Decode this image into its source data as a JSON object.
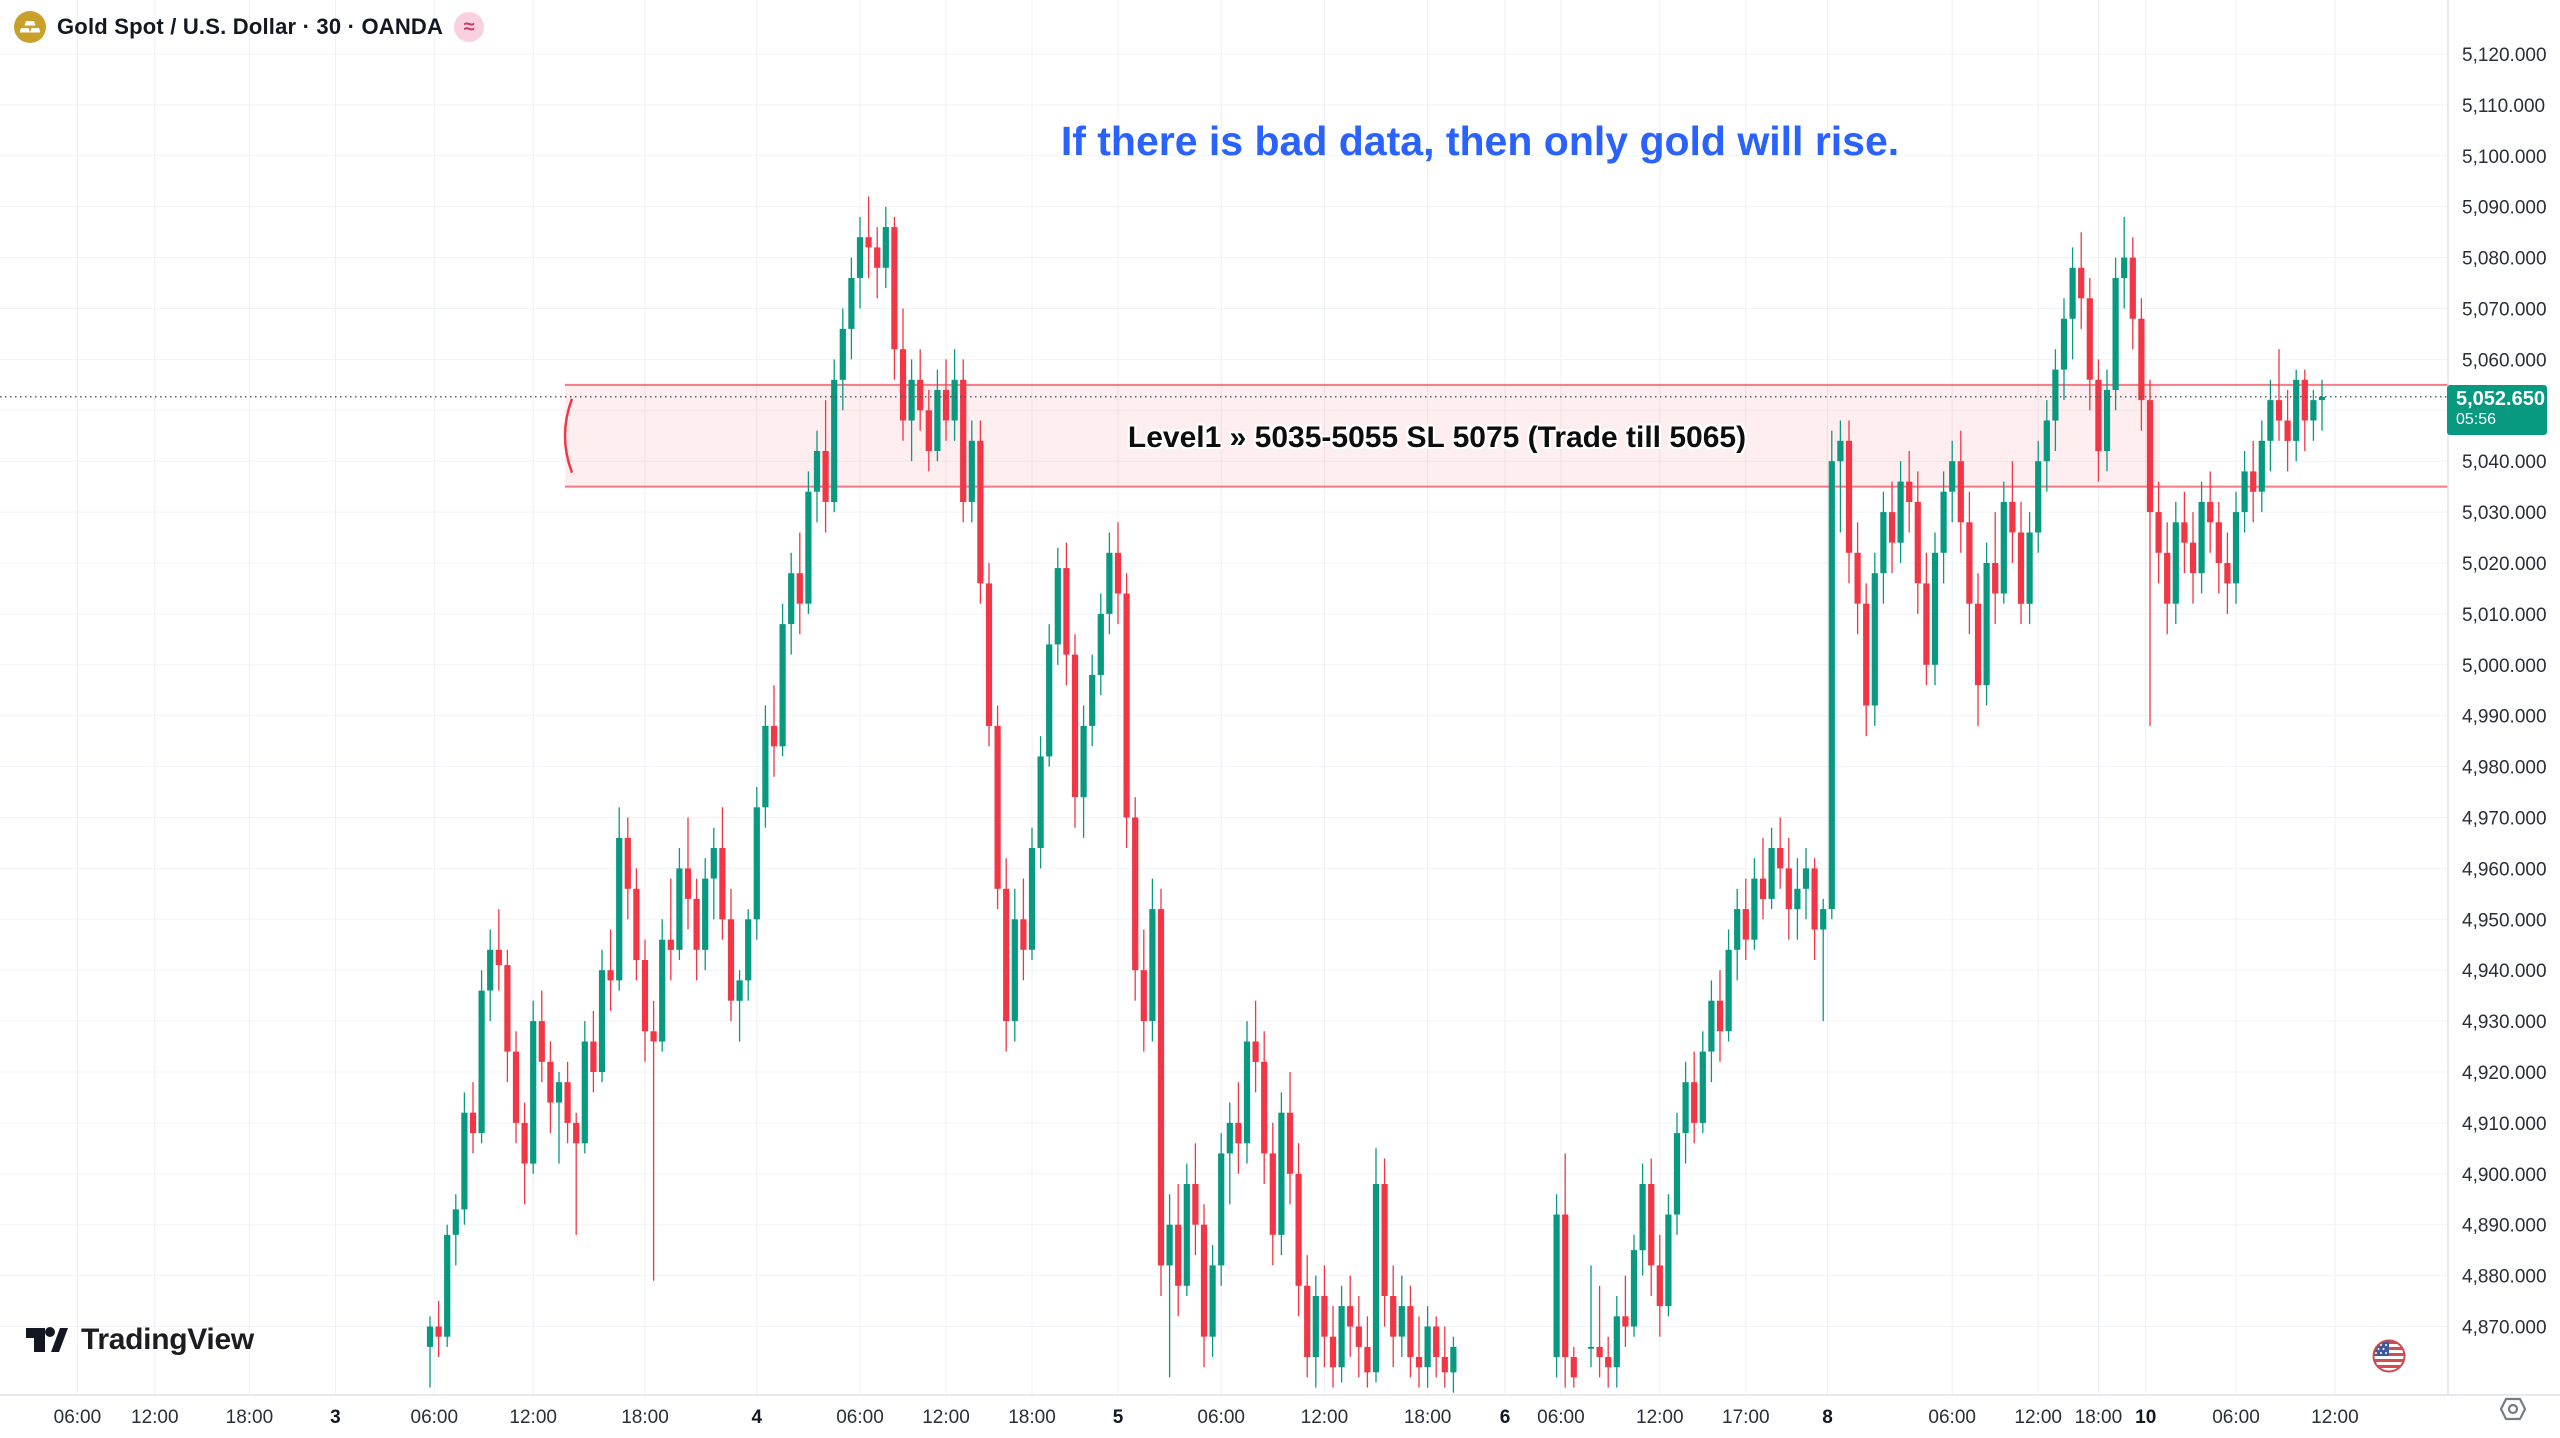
{
  "header": {
    "symbol_title": "Gold Spot / U.S. Dollar · 30 · OANDA",
    "delayed_badge": "≈",
    "gold_icon": "gold-bars-icon"
  },
  "annotation": {
    "text": "If there is bad data, then only gold will rise.",
    "color": "#2962ff"
  },
  "zone": {
    "label": "Level1 » 5035-5055 SL 5075 (Trade till 5065)",
    "price_top": 5055,
    "price_bottom": 5035,
    "color": "#f23645"
  },
  "last_price": {
    "value": "5,052.650",
    "countdown": "05:56",
    "price": 5052.65,
    "color": "#089981"
  },
  "logo": {
    "text": "TradingView"
  },
  "price_axis": {
    "ticks": [
      {
        "price": 5120,
        "label": "5,120.000"
      },
      {
        "price": 5110,
        "label": "5,110.000"
      },
      {
        "price": 5100,
        "label": "5,100.000"
      },
      {
        "price": 5090,
        "label": "5,090.000"
      },
      {
        "price": 5080,
        "label": "5,080.000"
      },
      {
        "price": 5070,
        "label": "5,070.000"
      },
      {
        "price": 5060,
        "label": "5,060.000"
      },
      {
        "price": 5050,
        "label": "5,050.000"
      },
      {
        "price": 5040,
        "label": "5,040.000"
      },
      {
        "price": 5030,
        "label": "5,030.000"
      },
      {
        "price": 5020,
        "label": "5,020.000"
      },
      {
        "price": 5010,
        "label": "5,010.000"
      },
      {
        "price": 5000,
        "label": "5,000.000"
      },
      {
        "price": 4990,
        "label": "4,990.000"
      },
      {
        "price": 4980,
        "label": "4,980.000"
      },
      {
        "price": 4970,
        "label": "4,970.000"
      },
      {
        "price": 4960,
        "label": "4,960.000"
      },
      {
        "price": 4950,
        "label": "4,950.000"
      },
      {
        "price": 4940,
        "label": "4,940.000"
      },
      {
        "price": 4930,
        "label": "4,930.000"
      },
      {
        "price": 4920,
        "label": "4,920.000"
      },
      {
        "price": 4910,
        "label": "4,910.000"
      },
      {
        "price": 4900,
        "label": "4,900.000"
      },
      {
        "price": 4890,
        "label": "4,890.000"
      },
      {
        "price": 4880,
        "label": "4,880.000"
      },
      {
        "price": 4870,
        "label": "4,870.000"
      }
    ],
    "hide_label_price": 5050
  },
  "time_axis": {
    "ticks": [
      {
        "label": "06:00",
        "slot": -41
      },
      {
        "label": "12:00",
        "slot": -32
      },
      {
        "label": "18:00",
        "slot": -21
      },
      {
        "label": "3",
        "slot": -11,
        "bold": true
      },
      {
        "label": "06:00",
        "slot": 0.5
      },
      {
        "label": "12:00",
        "slot": 12
      },
      {
        "label": "18:00",
        "slot": 25
      },
      {
        "label": "4",
        "slot": 38,
        "bold": true
      },
      {
        "label": "06:00",
        "slot": 50
      },
      {
        "label": "12:00",
        "slot": 60
      },
      {
        "label": "18:00",
        "slot": 70
      },
      {
        "label": "5",
        "slot": 80,
        "bold": true
      },
      {
        "label": "06:00",
        "slot": 92
      },
      {
        "label": "12:00",
        "slot": 104
      },
      {
        "label": "18:00",
        "slot": 116
      },
      {
        "label": "6",
        "slot": 125,
        "bold": true
      },
      {
        "label": "06:00",
        "slot": 131.5
      },
      {
        "label": "12:00",
        "slot": 143
      },
      {
        "label": "17:00",
        "slot": 153
      },
      {
        "label": "8",
        "slot": 162.5,
        "bold": true
      },
      {
        "label": "06:00",
        "slot": 177
      },
      {
        "label": "12:00",
        "slot": 187
      },
      {
        "label": "18:00",
        "slot": 194
      },
      {
        "label": "10",
        "slot": 199.5,
        "bold": true
      },
      {
        "label": "06:00",
        "slot": 210
      },
      {
        "label": "12:00",
        "slot": 221.5
      }
    ]
  },
  "chart_data": {
    "type": "candlestick",
    "title": "Gold Spot / U.S. Dollar",
    "exchange": "OANDA",
    "interval_minutes": 30,
    "up_color": "#089981",
    "down_color": "#f23645",
    "ylim": [
      4858,
      5122
    ],
    "grid": true,
    "candles": [
      [
        4866,
        4872,
        4858,
        4870
      ],
      [
        4870,
        4875,
        4864,
        4868
      ],
      [
        4868,
        4890,
        4866,
        4888
      ],
      [
        4888,
        4896,
        4882,
        4893
      ],
      [
        4893,
        4916,
        4890,
        4912
      ],
      [
        4912,
        4918,
        4904,
        4908
      ],
      [
        4908,
        4940,
        4906,
        4936
      ],
      [
        4936,
        4948,
        4930,
        4944
      ],
      [
        4944,
        4952,
        4936,
        4941
      ],
      [
        4941,
        4944,
        4918,
        4924
      ],
      [
        4924,
        4928,
        4906,
        4910
      ],
      [
        4910,
        4914,
        4894,
        4902
      ],
      [
        4902,
        4934,
        4900,
        4930
      ],
      [
        4930,
        4936,
        4918,
        4922
      ],
      [
        4922,
        4926,
        4908,
        4914
      ],
      [
        4914,
        4920,
        4902,
        4918
      ],
      [
        4918,
        4922,
        4906,
        4910
      ],
      [
        4910,
        4912,
        4888,
        4906
      ],
      [
        4906,
        4930,
        4904,
        4926
      ],
      [
        4926,
        4932,
        4916,
        4920
      ],
      [
        4920,
        4944,
        4918,
        4940
      ],
      [
        4940,
        4948,
        4932,
        4938
      ],
      [
        4938,
        4972,
        4936,
        4966
      ],
      [
        4966,
        4970,
        4950,
        4956
      ],
      [
        4956,
        4960,
        4938,
        4942
      ],
      [
        4942,
        4946,
        4922,
        4928
      ],
      [
        4928,
        4934,
        4879,
        4926
      ],
      [
        4926,
        4950,
        4924,
        4946
      ],
      [
        4946,
        4958,
        4938,
        4944
      ],
      [
        4944,
        4964,
        4942,
        4960
      ],
      [
        4960,
        4970,
        4948,
        4954
      ],
      [
        4954,
        4958,
        4938,
        4944
      ],
      [
        4944,
        4962,
        4940,
        4958
      ],
      [
        4958,
        4968,
        4950,
        4964
      ],
      [
        4964,
        4972,
        4946,
        4950
      ],
      [
        4950,
        4956,
        4930,
        4934
      ],
      [
        4934,
        4940,
        4926,
        4938
      ],
      [
        4938,
        4952,
        4934,
        4950
      ],
      [
        4950,
        4976,
        4946,
        4972
      ],
      [
        4972,
        4992,
        4968,
        4988
      ],
      [
        4988,
        4996,
        4978,
        4984
      ],
      [
        4984,
        5012,
        4982,
        5008
      ],
      [
        5008,
        5022,
        5002,
        5018
      ],
      [
        5018,
        5026,
        5006,
        5012
      ],
      [
        5012,
        5038,
        5010,
        5034
      ],
      [
        5034,
        5046,
        5028,
        5042
      ],
      [
        5042,
        5052,
        5026,
        5032
      ],
      [
        5032,
        5060,
        5030,
        5056
      ],
      [
        5056,
        5070,
        5050,
        5066
      ],
      [
        5066,
        5080,
        5060,
        5076
      ],
      [
        5076,
        5088,
        5070,
        5084
      ],
      [
        5084,
        5092,
        5076,
        5082
      ],
      [
        5082,
        5086,
        5072,
        5078
      ],
      [
        5078,
        5090,
        5074,
        5086
      ],
      [
        5086,
        5088,
        5056,
        5062
      ],
      [
        5062,
        5070,
        5044,
        5048
      ],
      [
        5048,
        5060,
        5040,
        5056
      ],
      [
        5056,
        5062,
        5046,
        5050
      ],
      [
        5050,
        5054,
        5038,
        5042
      ],
      [
        5042,
        5058,
        5040,
        5054
      ],
      [
        5054,
        5060,
        5044,
        5048
      ],
      [
        5048,
        5062,
        5044,
        5056
      ],
      [
        5056,
        5060,
        5028,
        5032
      ],
      [
        5032,
        5048,
        5028,
        5044
      ],
      [
        5044,
        5048,
        5012,
        5016
      ],
      [
        5016,
        5020,
        4984,
        4988
      ],
      [
        4988,
        4992,
        4952,
        4956
      ],
      [
        4956,
        4962,
        4924,
        4930
      ],
      [
        4930,
        4956,
        4926,
        4950
      ],
      [
        4950,
        4958,
        4938,
        4944
      ],
      [
        4944,
        4968,
        4942,
        4964
      ],
      [
        4964,
        4986,
        4960,
        4982
      ],
      [
        4982,
        5008,
        4980,
        5004
      ],
      [
        5004,
        5023,
        5000,
        5019
      ],
      [
        5019,
        5024,
        4996,
        5002
      ],
      [
        5002,
        5006,
        4968,
        4974
      ],
      [
        4974,
        4992,
        4966,
        4988
      ],
      [
        4988,
        5002,
        4984,
        4998
      ],
      [
        4998,
        5014,
        4994,
        5010
      ],
      [
        5010,
        5026,
        5006,
        5022
      ],
      [
        5022,
        5028,
        5008,
        5014
      ],
      [
        5014,
        5018,
        4964,
        4970
      ],
      [
        4970,
        4974,
        4934,
        4940
      ],
      [
        4940,
        4948,
        4924,
        4930
      ],
      [
        4930,
        4958,
        4926,
        4952
      ],
      [
        4952,
        4956,
        4876,
        4882
      ],
      [
        4882,
        4896,
        4860,
        4890
      ],
      [
        4890,
        4898,
        4872,
        4878
      ],
      [
        4878,
        4902,
        4876,
        4898
      ],
      [
        4898,
        4906,
        4884,
        4890
      ],
      [
        4890,
        4894,
        4862,
        4868
      ],
      [
        4868,
        4886,
        4864,
        4882
      ],
      [
        4882,
        4908,
        4878,
        4904
      ],
      [
        4904,
        4914,
        4894,
        4910
      ],
      [
        4910,
        4918,
        4900,
        4906
      ],
      [
        4906,
        4930,
        4902,
        4926
      ],
      [
        4926,
        4934,
        4916,
        4922
      ],
      [
        4922,
        4928,
        4898,
        4904
      ],
      [
        4904,
        4910,
        4882,
        4888
      ],
      [
        4888,
        4916,
        4884,
        4912
      ],
      [
        4912,
        4920,
        4894,
        4900
      ],
      [
        4900,
        4906,
        4872,
        4878
      ],
      [
        4878,
        4884,
        4860,
        4864
      ],
      [
        4864,
        4880,
        4858,
        4876
      ],
      [
        4876,
        4882,
        4862,
        4868
      ],
      [
        4868,
        4874,
        4858,
        4862
      ],
      [
        4862,
        4878,
        4859,
        4874
      ],
      [
        4874,
        4880,
        4864,
        4870
      ],
      [
        4870,
        4876,
        4860,
        4866
      ],
      [
        4866,
        4872,
        4858,
        4861
      ],
      [
        4861,
        4905,
        4859,
        4898
      ],
      [
        4898,
        4903,
        4870,
        4876
      ],
      [
        4876,
        4882,
        4862,
        4868
      ],
      [
        4868,
        4880,
        4864,
        4874
      ],
      [
        4874,
        4878,
        4860,
        4864
      ],
      [
        4864,
        4872,
        4858,
        4862
      ],
      [
        4862,
        4874,
        4858,
        4870
      ],
      [
        4870,
        4872,
        4860,
        4864
      ],
      [
        4864,
        4870,
        4858,
        4861
      ],
      [
        4861,
        4868,
        4857,
        4866
      ],
      null,
      null,
      null,
      null,
      null,
      null,
      null,
      null,
      null,
      null,
      null,
      [
        4864,
        4896,
        4860,
        4892
      ],
      [
        4892,
        4904,
        4858,
        4864
      ],
      [
        4864,
        4866,
        4858,
        4860
      ],
      null,
      [
        4866,
        4882,
        4862,
        4866
      ],
      [
        4866,
        4878,
        4860,
        4864
      ],
      [
        4864,
        4868,
        4858,
        4862
      ],
      [
        4862,
        4876,
        4858,
        4872
      ],
      [
        4872,
        4880,
        4866,
        4870
      ],
      [
        4870,
        4888,
        4868,
        4885
      ],
      [
        4885,
        4902,
        4880,
        4898
      ],
      [
        4898,
        4903,
        4876,
        4882
      ],
      [
        4882,
        4888,
        4868,
        4874
      ],
      [
        4874,
        4896,
        4872,
        4892
      ],
      [
        4892,
        4912,
        4888,
        4908
      ],
      [
        4908,
        4922,
        4902,
        4918
      ],
      [
        4918,
        4924,
        4906,
        4910
      ],
      [
        4910,
        4928,
        4908,
        4924
      ],
      [
        4924,
        4938,
        4918,
        4934
      ],
      [
        4934,
        4940,
        4922,
        4928
      ],
      [
        4928,
        4948,
        4926,
        4944
      ],
      [
        4944,
        4956,
        4938,
        4952
      ],
      [
        4952,
        4958,
        4942,
        4946
      ],
      [
        4946,
        4962,
        4944,
        4958
      ],
      [
        4958,
        4966,
        4950,
        4954
      ],
      [
        4954,
        4968,
        4952,
        4964
      ],
      [
        4964,
        4970,
        4956,
        4960
      ],
      [
        4960,
        4966,
        4946,
        4952
      ],
      [
        4952,
        4962,
        4946,
        4956
      ],
      [
        4956,
        4964,
        4950,
        4960
      ],
      [
        4960,
        4962,
        4942,
        4948
      ],
      [
        4948,
        4954,
        4930,
        4952
      ],
      [
        4952,
        5046,
        4950,
        5040
      ],
      [
        5040,
        5048,
        5026,
        5044
      ],
      [
        5044,
        5048,
        5016,
        5022
      ],
      [
        5022,
        5028,
        5006,
        5012
      ],
      [
        5012,
        5016,
        4986,
        4992
      ],
      [
        4992,
        5022,
        4988,
        5018
      ],
      [
        5018,
        5034,
        5012,
        5030
      ],
      [
        5030,
        5036,
        5018,
        5024
      ],
      [
        5024,
        5040,
        5020,
        5036
      ],
      [
        5036,
        5042,
        5026,
        5032
      ],
      [
        5032,
        5038,
        5010,
        5016
      ],
      [
        5016,
        5022,
        4996,
        5000
      ],
      [
        5000,
        5026,
        4996,
        5022
      ],
      [
        5022,
        5038,
        5016,
        5034
      ],
      [
        5034,
        5044,
        5028,
        5040
      ],
      [
        5040,
        5046,
        5022,
        5028
      ],
      [
        5028,
        5034,
        5006,
        5012
      ],
      [
        5012,
        5018,
        4988,
        4996
      ],
      [
        4996,
        5024,
        4992,
        5020
      ],
      [
        5020,
        5030,
        5008,
        5014
      ],
      [
        5014,
        5036,
        5012,
        5032
      ],
      [
        5032,
        5040,
        5020,
        5026
      ],
      [
        5026,
        5032,
        5008,
        5012
      ],
      [
        5012,
        5030,
        5008,
        5026
      ],
      [
        5026,
        5044,
        5022,
        5040
      ],
      [
        5040,
        5052,
        5034,
        5048
      ],
      [
        5048,
        5062,
        5042,
        5058
      ],
      [
        5058,
        5072,
        5052,
        5068
      ],
      [
        5068,
        5082,
        5060,
        5078
      ],
      [
        5078,
        5085,
        5066,
        5072
      ],
      [
        5072,
        5076,
        5050,
        5056
      ],
      [
        5056,
        5060,
        5036,
        5042
      ],
      [
        5042,
        5058,
        5038,
        5054
      ],
      [
        5054,
        5080,
        5050,
        5076
      ],
      [
        5076,
        5088,
        5070,
        5080
      ],
      [
        5080,
        5084,
        5062,
        5068
      ],
      [
        5068,
        5072,
        5046,
        5052
      ],
      [
        5052,
        5056,
        4988,
        5030
      ],
      [
        5030,
        5036,
        5016,
        5022
      ],
      [
        5022,
        5028,
        5006,
        5012
      ],
      [
        5012,
        5032,
        5008,
        5028
      ],
      [
        5028,
        5034,
        5018,
        5024
      ],
      [
        5024,
        5030,
        5012,
        5018
      ],
      [
        5018,
        5036,
        5014,
        5032
      ],
      [
        5032,
        5038,
        5022,
        5028
      ],
      [
        5028,
        5032,
        5014,
        5020
      ],
      [
        5020,
        5026,
        5010,
        5016
      ],
      [
        5016,
        5034,
        5012,
        5030
      ],
      [
        5030,
        5042,
        5026,
        5038
      ],
      [
        5038,
        5044,
        5028,
        5034
      ],
      [
        5034,
        5048,
        5030,
        5044
      ],
      [
        5044,
        5056,
        5038,
        5052
      ],
      [
        5052,
        5062,
        5044,
        5048
      ],
      [
        5048,
        5054,
        5038,
        5044
      ],
      [
        5044,
        5058,
        5040,
        5056
      ],
      [
        5056,
        5058,
        5042,
        5048
      ],
      [
        5048,
        5054,
        5044,
        5052
      ],
      [
        5052,
        5056,
        5046,
        5052.65
      ]
    ]
  }
}
